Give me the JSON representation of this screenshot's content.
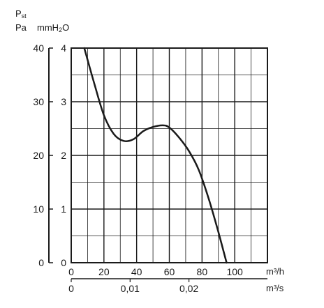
{
  "chart_data": {
    "type": "line",
    "ylabel_line1": "Pst",
    "ylabel_pa": "Pa",
    "ylabel_mm": "mmH2O",
    "xlabel_flow_h": "m³/h",
    "xlabel_flow_s": "m³/s",
    "x_flow_h": {
      "range": [
        0,
        120
      ],
      "ticks": [
        0,
        20,
        40,
        60,
        80,
        100
      ],
      "tick_labels": [
        "0",
        "20",
        "40",
        "60",
        "80",
        "100"
      ]
    },
    "x_flow_s": {
      "ticks": [
        0,
        0.01,
        0.02
      ],
      "tick_labels": [
        "0",
        "0,01",
        "0,02"
      ]
    },
    "y_pa": {
      "range": [
        0,
        40
      ],
      "ticks": [
        0,
        10,
        20,
        30,
        40
      ],
      "tick_labels": [
        "0",
        "10",
        "20",
        "30",
        "40"
      ]
    },
    "y_mmh2o": {
      "range": [
        0,
        4
      ],
      "ticks": [
        0,
        1,
        2,
        3,
        4
      ],
      "tick_labels": [
        "0",
        "1",
        "2",
        "3",
        "4"
      ]
    },
    "grid": true,
    "series": [
      {
        "values_x": [
          8,
          14,
          20,
          26,
          32,
          38,
          44,
          50,
          56,
          60,
          66,
          72,
          78,
          84,
          90,
          95
        ],
        "values_y": [
          40,
          33.5,
          27.5,
          24.0,
          22.7,
          23.0,
          24.5,
          25.3,
          25.6,
          25.2,
          23.3,
          20.8,
          17.3,
          12.0,
          5.7,
          0
        ]
      }
    ]
  }
}
